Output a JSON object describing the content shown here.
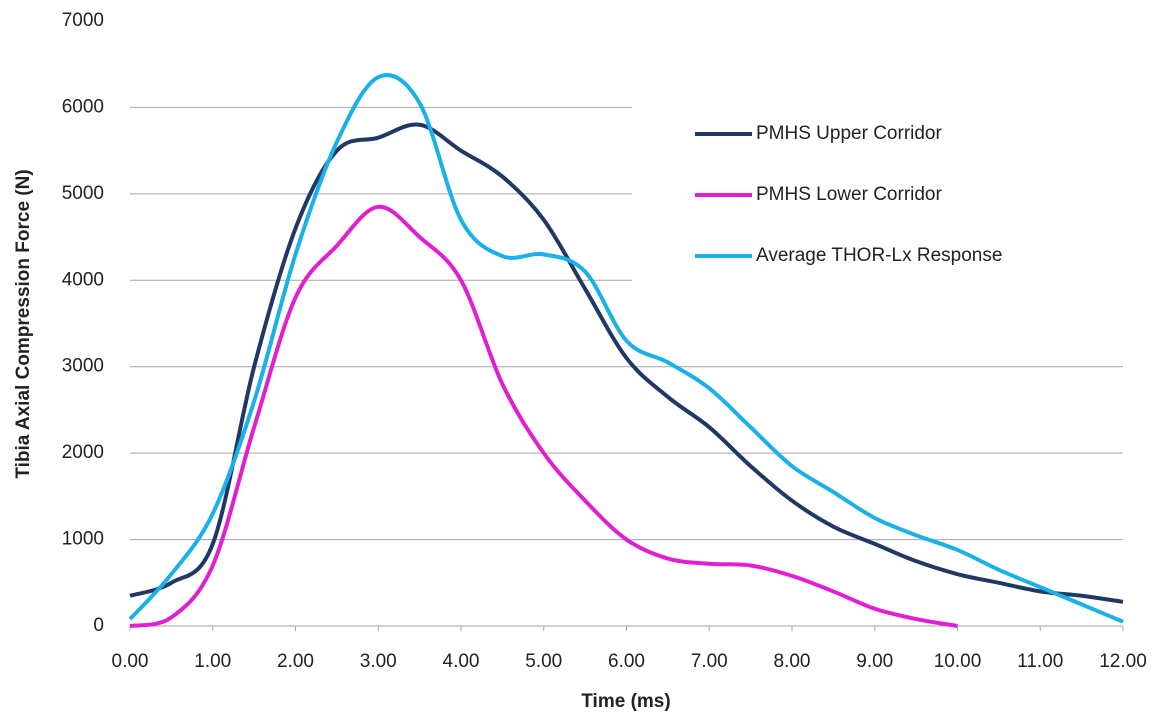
{
  "chart_data": {
    "type": "line",
    "x_label": "Time (ms)",
    "y_label": "Tibia Axial Compression Force (N)",
    "x": [
      0,
      0.5,
      1,
      1.5,
      2,
      2.5,
      3,
      3.5,
      4,
      4.5,
      5,
      5.5,
      6,
      6.5,
      7,
      7.5,
      8,
      8.5,
      9,
      9.5,
      10,
      10.5,
      11,
      11.5,
      12
    ],
    "series": [
      {
        "name": "PMHS Upper Corridor",
        "color": "#203864",
        "values": [
          350,
          500,
          950,
          3000,
          4600,
          5500,
          5650,
          5800,
          5500,
          5200,
          4700,
          3900,
          3100,
          2650,
          2300,
          1850,
          1450,
          1150,
          950,
          750,
          600,
          500,
          400,
          350,
          280
        ]
      },
      {
        "name": "PMHS Lower Corridor",
        "color": "#e020d0",
        "values": [
          0,
          100,
          700,
          2300,
          3800,
          4400,
          4850,
          4500,
          4000,
          2800,
          2000,
          1450,
          1000,
          780,
          720,
          700,
          580,
          400,
          200,
          80,
          0,
          null,
          null,
          null,
          null
        ]
      },
      {
        "name": "Average THOR-Lx Response",
        "color": "#1ab0e8",
        "values": [
          80,
          600,
          1300,
          2600,
          4300,
          5600,
          6350,
          6050,
          4700,
          4280,
          4300,
          4100,
          3300,
          3050,
          2750,
          2300,
          1850,
          1550,
          1250,
          1050,
          880,
          650,
          450,
          250,
          50
        ]
      }
    ],
    "xlim": [
      0,
      12
    ],
    "xticks": [
      {
        "value": 0,
        "label": "0.00"
      },
      {
        "value": 1,
        "label": "1.00"
      },
      {
        "value": 2,
        "label": "2.00"
      },
      {
        "value": 3,
        "label": "3.00"
      },
      {
        "value": 4,
        "label": "4.00"
      },
      {
        "value": 5,
        "label": "5.00"
      },
      {
        "value": 6,
        "label": "6.00"
      },
      {
        "value": 7,
        "label": "7.00"
      },
      {
        "value": 8,
        "label": "8.00"
      },
      {
        "value": 9,
        "label": "9.00"
      },
      {
        "value": 10,
        "label": "10.00"
      },
      {
        "value": 11,
        "label": "11.00"
      },
      {
        "value": 12,
        "label": "12.00"
      }
    ],
    "ylim": [
      0,
      7000
    ],
    "yticks": [
      0,
      1000,
      2000,
      3000,
      4000,
      5000,
      6000,
      7000
    ],
    "grid": true,
    "legend": "upper right"
  }
}
